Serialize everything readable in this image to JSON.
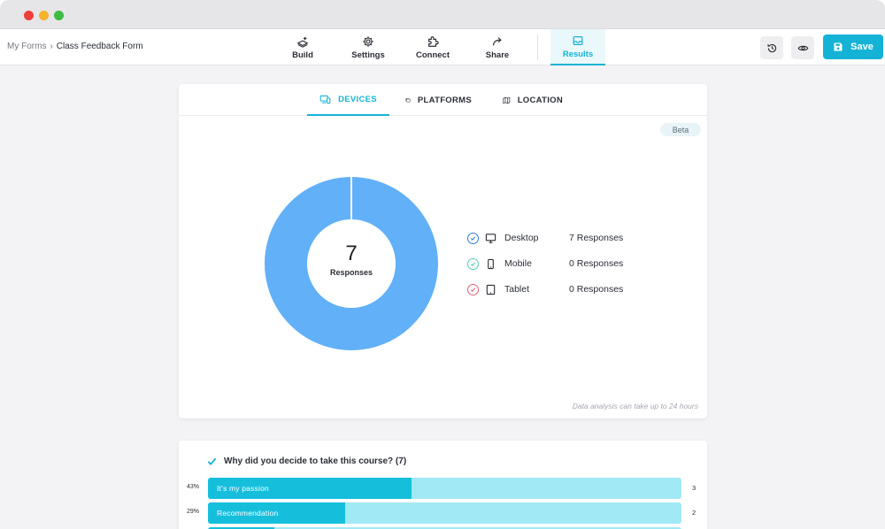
{
  "breadcrumb": {
    "root": "My Forms",
    "separator": "›",
    "current": "Class Feedback Form"
  },
  "nav": {
    "tabs": [
      {
        "label": "Build",
        "icon": "build-icon"
      },
      {
        "label": "Settings",
        "icon": "gear-icon"
      },
      {
        "label": "Connect",
        "icon": "puzzle-icon"
      },
      {
        "label": "Share",
        "icon": "share-arrow-icon"
      },
      {
        "label": "Results",
        "icon": "inbox-icon",
        "active": true
      }
    ],
    "history_icon": "history-icon",
    "preview_icon": "eye-icon",
    "save_label": "Save"
  },
  "analytics": {
    "tabs": [
      {
        "label": "DEVICES",
        "icon": "devices-icon",
        "active": true
      },
      {
        "label": "PLATFORMS",
        "icon": "platforms-icon"
      },
      {
        "label": "LOCATION",
        "icon": "map-icon"
      }
    ],
    "beta_label": "Beta",
    "total": "7",
    "total_label": "Responses",
    "legend": [
      {
        "name": "Desktop",
        "responses": "7 Responses",
        "color": "#2f7fd4",
        "icon": "monitor-icon"
      },
      {
        "name": "Mobile",
        "responses": "0 Responses",
        "color": "#5cc9b6",
        "icon": "phone-icon"
      },
      {
        "name": "Tablet",
        "responses": "0 Responses",
        "color": "#e0647a",
        "icon": "tablet-icon"
      }
    ],
    "note": "Data analysis can take up to 24 hours"
  },
  "chart_data": {
    "type": "pie",
    "categories": [
      "Desktop",
      "Mobile",
      "Tablet"
    ],
    "values": [
      7,
      0,
      0
    ],
    "colors": [
      "#62b0f8",
      "#5cc9b6",
      "#e0647a"
    ]
  },
  "question": {
    "text": "Why did you decide to take this course? (7)",
    "options": [
      {
        "pct": "43%",
        "label": "It's my passion",
        "count": "3",
        "fraction": 0.43
      },
      {
        "pct": "29%",
        "label": "Recommendation",
        "count": "2",
        "fraction": 0.29
      },
      {
        "pct": "",
        "label": "",
        "count": "",
        "fraction": 0.14
      }
    ]
  },
  "colors": {
    "accent": "#14b3d6",
    "bar_fill": "#15bfdc",
    "bar_track": "#a1e9f5",
    "donut": "#62b0f8"
  }
}
